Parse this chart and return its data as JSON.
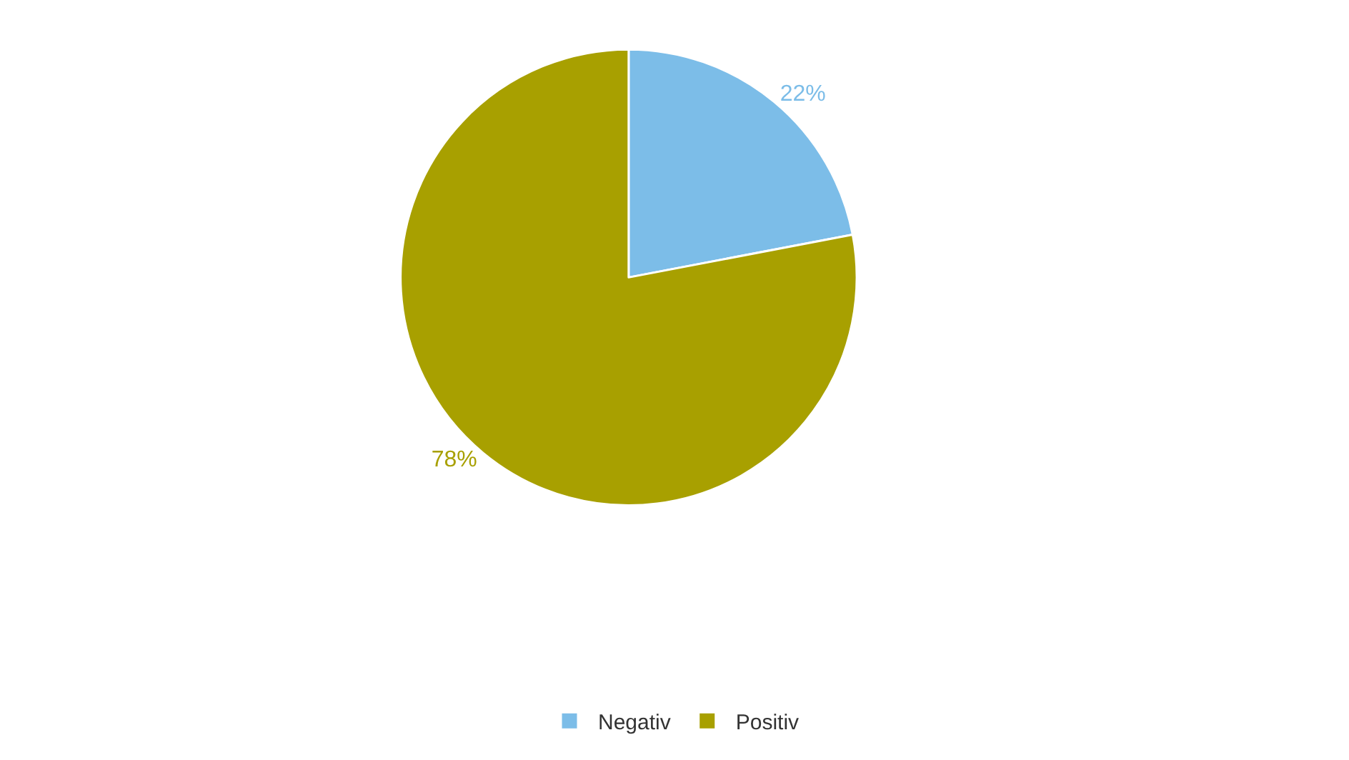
{
  "chart_data": {
    "type": "pie",
    "categories": [
      "Negativ",
      "Positiv"
    ],
    "values": [
      22,
      78
    ],
    "colors": [
      "#7cbde8",
      "#a8a000"
    ],
    "value_labels": [
      "22%",
      "78%"
    ],
    "legend": "bottom"
  }
}
